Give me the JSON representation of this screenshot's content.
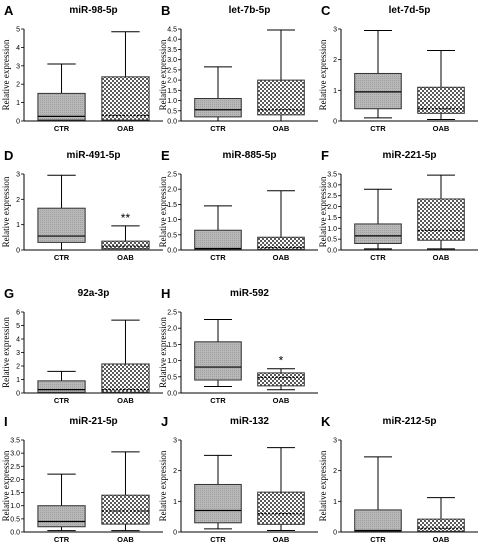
{
  "chart_data": [
    {
      "type": "box",
      "letter": "A",
      "title": "miR-98-5p",
      "ylabel": "Relative expression",
      "ylim": [
        0,
        5
      ],
      "yticks": [
        "0",
        "1",
        "2",
        "3",
        "4",
        "5"
      ],
      "ytick_values": [
        0,
        1,
        2,
        3,
        4,
        5
      ],
      "categories": [
        "CTR",
        "OAB"
      ],
      "boxes": [
        {
          "min": 0.0,
          "q1": 0.05,
          "median": 0.25,
          "q3": 1.5,
          "max": 3.1,
          "pattern": "gray"
        },
        {
          "min": 0.0,
          "q1": 0.05,
          "median": 0.3,
          "q3": 2.4,
          "max": 4.85,
          "pattern": "check"
        }
      ],
      "significance": [
        "",
        ""
      ]
    },
    {
      "type": "box",
      "letter": "B",
      "title": "let-7b-5p",
      "ylabel": "Relative expression",
      "ylim": [
        0,
        4.5
      ],
      "yticks": [
        "0.0",
        "0.5",
        "1.0",
        "1.5",
        "2.0",
        "2.5",
        "3.0",
        "3.5",
        "4.0",
        "4.5"
      ],
      "ytick_values": [
        0,
        0.5,
        1,
        1.5,
        2,
        2.5,
        3,
        3.5,
        4,
        4.5
      ],
      "categories": [
        "CTR",
        "OAB"
      ],
      "boxes": [
        {
          "min": 0.0,
          "q1": 0.2,
          "median": 0.55,
          "q3": 1.1,
          "max": 2.65,
          "pattern": "gray"
        },
        {
          "min": 0.0,
          "q1": 0.3,
          "median": 0.55,
          "q3": 2.0,
          "max": 4.45,
          "pattern": "check"
        }
      ],
      "significance": [
        "",
        ""
      ]
    },
    {
      "type": "box",
      "letter": "C",
      "title": "let-7d-5p",
      "ylabel": "Relative expression",
      "ylim": [
        0,
        3
      ],
      "yticks": [
        "0",
        "1",
        "2",
        "3"
      ],
      "ytick_values": [
        0,
        1,
        2,
        3
      ],
      "categories": [
        "CTR",
        "OAB"
      ],
      "boxes": [
        {
          "min": 0.1,
          "q1": 0.4,
          "median": 0.95,
          "q3": 1.55,
          "max": 2.95,
          "pattern": "gray"
        },
        {
          "min": 0.05,
          "q1": 0.25,
          "median": 0.4,
          "q3": 1.1,
          "max": 2.3,
          "pattern": "check"
        }
      ],
      "significance": [
        "",
        ""
      ]
    },
    {
      "type": "box",
      "letter": "D",
      "title": "miR-491-5p",
      "ylabel": "Relative expression",
      "ylim": [
        0,
        3
      ],
      "yticks": [
        "0",
        "1",
        "2",
        "3"
      ],
      "ytick_values": [
        0,
        1,
        2,
        3
      ],
      "categories": [
        "CTR",
        "OAB"
      ],
      "boxes": [
        {
          "min": 0.0,
          "q1": 0.3,
          "median": 0.55,
          "q3": 1.65,
          "max": 2.95,
          "pattern": "gray"
        },
        {
          "min": 0.0,
          "q1": 0.05,
          "median": 0.15,
          "q3": 0.35,
          "max": 0.95,
          "pattern": "check"
        }
      ],
      "significance": [
        "",
        "**"
      ]
    },
    {
      "type": "box",
      "letter": "E",
      "title": "miR-885-5p",
      "ylabel": "Relative expression",
      "ylim": [
        0,
        2.5
      ],
      "yticks": [
        "0.0",
        "0.5",
        "1.0",
        "1.5",
        "2.0",
        "2.5"
      ],
      "ytick_values": [
        0,
        0.5,
        1,
        1.5,
        2,
        2.5
      ],
      "categories": [
        "CTR",
        "OAB"
      ],
      "boxes": [
        {
          "min": 0.0,
          "q1": 0.02,
          "median": 0.05,
          "q3": 0.65,
          "max": 1.45,
          "pattern": "gray"
        },
        {
          "min": 0.0,
          "q1": 0.02,
          "median": 0.08,
          "q3": 0.42,
          "max": 1.95,
          "pattern": "check"
        }
      ],
      "significance": [
        "",
        ""
      ]
    },
    {
      "type": "box",
      "letter": "F",
      "title": "miR-221-5p",
      "ylabel": "Relative expression",
      "ylim": [
        0,
        3.5
      ],
      "yticks": [
        "0.0",
        "0.5",
        "1.0",
        "1.5",
        "2.0",
        "2.5",
        "3.0",
        "3.5"
      ],
      "ytick_values": [
        0,
        0.5,
        1,
        1.5,
        2,
        2.5,
        3,
        3.5
      ],
      "categories": [
        "CTR",
        "OAB"
      ],
      "boxes": [
        {
          "min": 0.05,
          "q1": 0.3,
          "median": 0.65,
          "q3": 1.2,
          "max": 2.8,
          "pattern": "gray"
        },
        {
          "min": 0.05,
          "q1": 0.45,
          "median": 0.9,
          "q3": 2.35,
          "max": 3.45,
          "pattern": "check"
        }
      ],
      "significance": [
        "",
        ""
      ]
    },
    {
      "type": "box",
      "letter": "G",
      "title": "92a-3p",
      "ylabel": "Relative expression",
      "ylim": [
        0,
        6
      ],
      "yticks": [
        "0",
        "1",
        "2",
        "3",
        "4",
        "5",
        "6"
      ],
      "ytick_values": [
        0,
        1,
        2,
        3,
        4,
        5,
        6
      ],
      "categories": [
        "CTR",
        "OAB"
      ],
      "boxes": [
        {
          "min": 0.0,
          "q1": 0.05,
          "median": 0.25,
          "q3": 0.9,
          "max": 1.6,
          "pattern": "gray"
        },
        {
          "min": 0.0,
          "q1": 0.05,
          "median": 0.25,
          "q3": 2.15,
          "max": 5.4,
          "pattern": "check"
        }
      ],
      "significance": [
        "",
        ""
      ]
    },
    {
      "type": "box",
      "letter": "H",
      "title": "miR-592",
      "ylabel": "Relative expression",
      "ylim": [
        0,
        2.5
      ],
      "yticks": [
        "0.0",
        "0.5",
        "1.0",
        "1.5",
        "2.0",
        "2.5"
      ],
      "ytick_values": [
        0,
        0.5,
        1,
        1.5,
        2,
        2.5
      ],
      "categories": [
        "CTR",
        "OAB"
      ],
      "boxes": [
        {
          "min": 0.2,
          "q1": 0.4,
          "median": 0.8,
          "q3": 1.58,
          "max": 2.27,
          "pattern": "gray"
        },
        {
          "min": 0.1,
          "q1": 0.22,
          "median": 0.48,
          "q3": 0.62,
          "max": 0.75,
          "pattern": "check"
        }
      ],
      "significance": [
        "",
        "*"
      ]
    },
    {
      "type": "box",
      "letter": "I",
      "title": "miR-21-5p",
      "ylabel": "Relative expression",
      "ylim": [
        0,
        3.5
      ],
      "yticks": [
        "0.0",
        "0.5",
        "1.0",
        "1.5",
        "2.0",
        "2.5",
        "3.0",
        "3.5"
      ],
      "ytick_values": [
        0,
        0.5,
        1,
        1.5,
        2,
        2.5,
        3,
        3.5
      ],
      "categories": [
        "CTR",
        "OAB"
      ],
      "boxes": [
        {
          "min": 0.05,
          "q1": 0.2,
          "median": 0.4,
          "q3": 1.0,
          "max": 2.2,
          "pattern": "gray"
        },
        {
          "min": 0.05,
          "q1": 0.3,
          "median": 0.8,
          "q3": 1.4,
          "max": 3.05,
          "pattern": "check"
        }
      ],
      "significance": [
        "",
        ""
      ]
    },
    {
      "type": "box",
      "letter": "J",
      "title": "miR-132",
      "ylabel": "Relative expression",
      "ylim": [
        0,
        3
      ],
      "yticks": [
        "0",
        "1",
        "2",
        "3"
      ],
      "ytick_values": [
        0,
        1,
        2,
        3
      ],
      "categories": [
        "CTR",
        "OAB"
      ],
      "boxes": [
        {
          "min": 0.1,
          "q1": 0.3,
          "median": 0.7,
          "q3": 1.55,
          "max": 2.5,
          "pattern": "gray"
        },
        {
          "min": 0.05,
          "q1": 0.25,
          "median": 0.6,
          "q3": 1.3,
          "max": 2.75,
          "pattern": "check"
        }
      ],
      "significance": [
        "",
        ""
      ]
    },
    {
      "type": "box",
      "letter": "K",
      "title": "miR-212-5p",
      "ylabel": "Relative expression",
      "ylim": [
        0,
        3
      ],
      "yticks": [
        "0",
        "1",
        "2",
        "3"
      ],
      "ytick_values": [
        0,
        1,
        2,
        3
      ],
      "categories": [
        "CTR",
        "OAB"
      ],
      "boxes": [
        {
          "min": 0.0,
          "q1": 0.02,
          "median": 0.05,
          "q3": 0.72,
          "max": 2.45,
          "pattern": "gray"
        },
        {
          "min": 0.0,
          "q1": 0.02,
          "median": 0.12,
          "q3": 0.42,
          "max": 1.12,
          "pattern": "check"
        }
      ],
      "significance": [
        "",
        ""
      ]
    }
  ],
  "colors": {
    "axis": "#000000",
    "box_stroke": "#333333",
    "gray_fill": "#b3b3b3",
    "check_dark": "#555555",
    "check_light": "#ffffff",
    "median": "#000000",
    "check_median": "#ffffff"
  }
}
